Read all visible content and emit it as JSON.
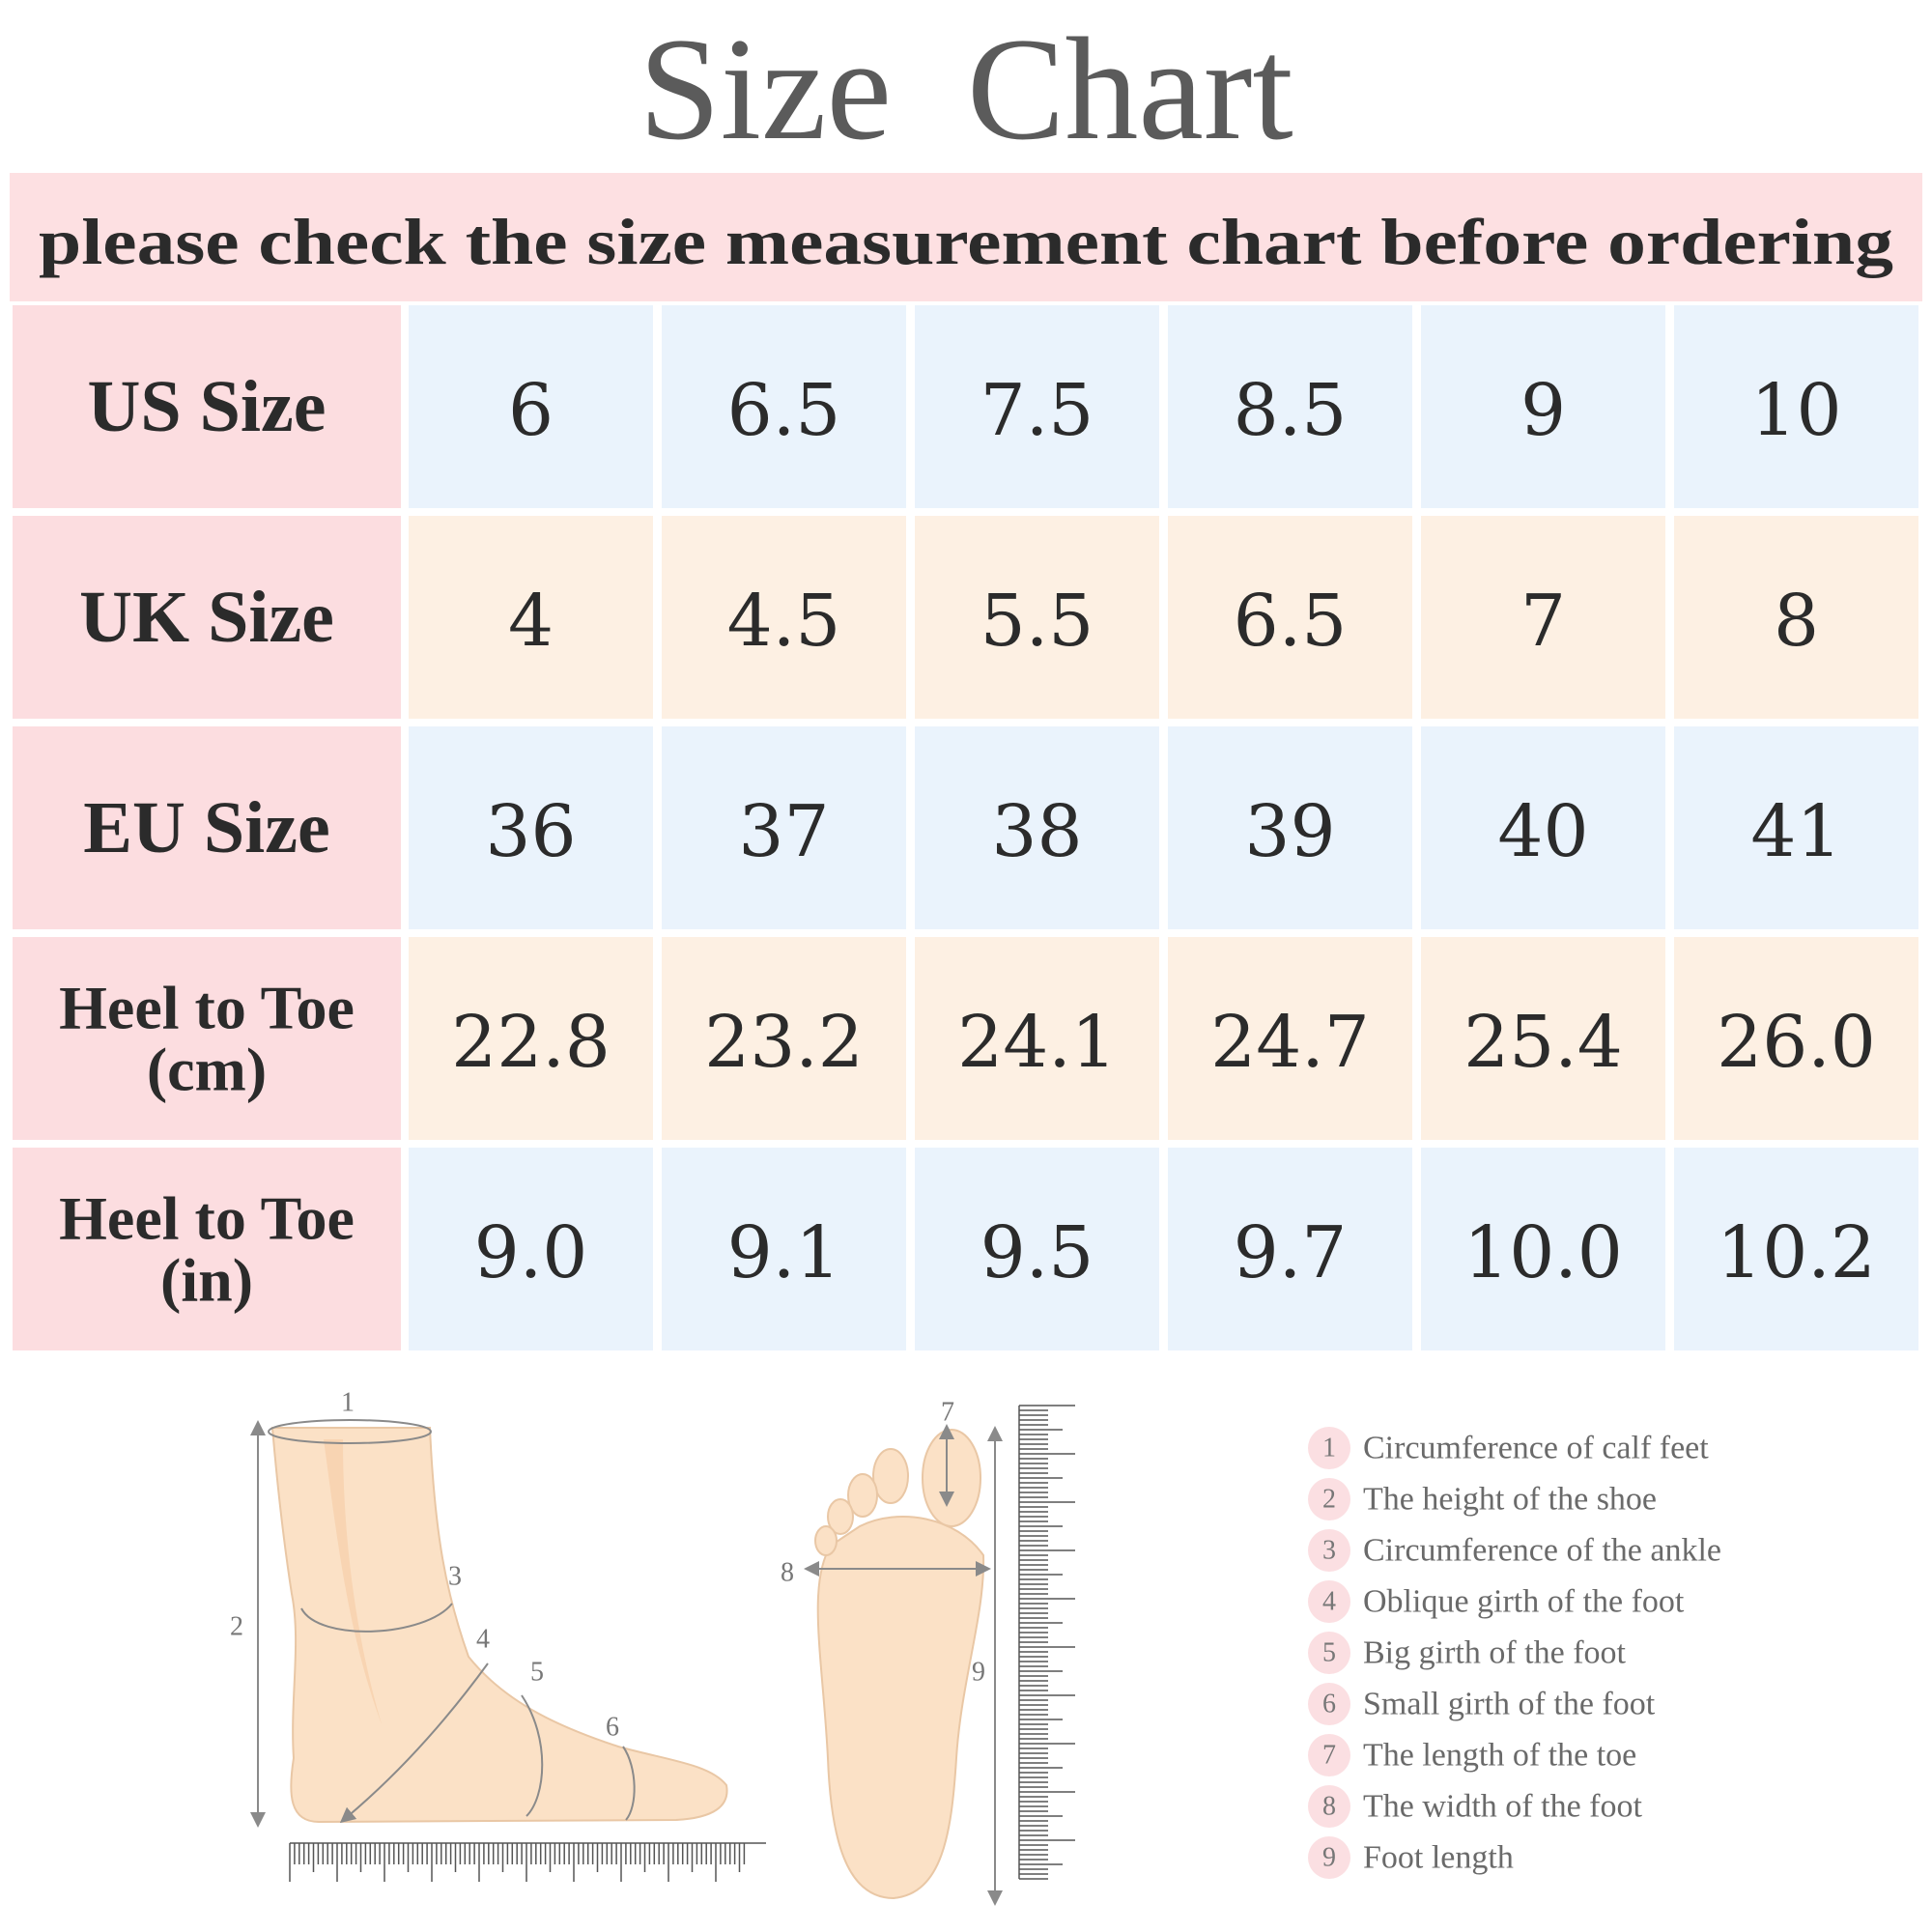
{
  "title": "Size Chart",
  "subtitle": "please check the size measurement chart before ordering",
  "table": {
    "rows": [
      {
        "header": [
          "US Size"
        ],
        "cells": [
          "6",
          "6.5",
          "7.5",
          "8.5",
          "9",
          "10"
        ]
      },
      {
        "header": [
          "UK Size"
        ],
        "cells": [
          "4",
          "4.5",
          "5.5",
          "6.5",
          "7",
          "8"
        ]
      },
      {
        "header": [
          "EU Size"
        ],
        "cells": [
          "36",
          "37",
          "38",
          "39",
          "40",
          "41"
        ]
      },
      {
        "header": [
          "Heel to Toe",
          "(cm)"
        ],
        "cells": [
          "22.8",
          "23.2",
          "24.1",
          "24.7",
          "25.4",
          "26.0"
        ]
      },
      {
        "header": [
          "Heel to Toe",
          "(in)"
        ],
        "cells": [
          "9.0",
          "9.1",
          "9.5",
          "9.7",
          "10.0",
          "10.2"
        ]
      }
    ]
  },
  "legend": {
    "items": [
      {
        "number": "1",
        "text": "Circumference of calf feet"
      },
      {
        "number": "2",
        "text": "The height of the shoe"
      },
      {
        "number": "3",
        "text": "Circumference of the ankle"
      },
      {
        "number": "4",
        "text": "Oblique girth of the foot"
      },
      {
        "number": "5",
        "text": "Big girth of the foot"
      },
      {
        "number": "6",
        "text": "Small girth of the foot"
      },
      {
        "number": "7",
        "text": "The length of the toe"
      },
      {
        "number": "8",
        "text": "The width of the foot"
      },
      {
        "number": "9",
        "text": "Foot length"
      }
    ]
  }
}
